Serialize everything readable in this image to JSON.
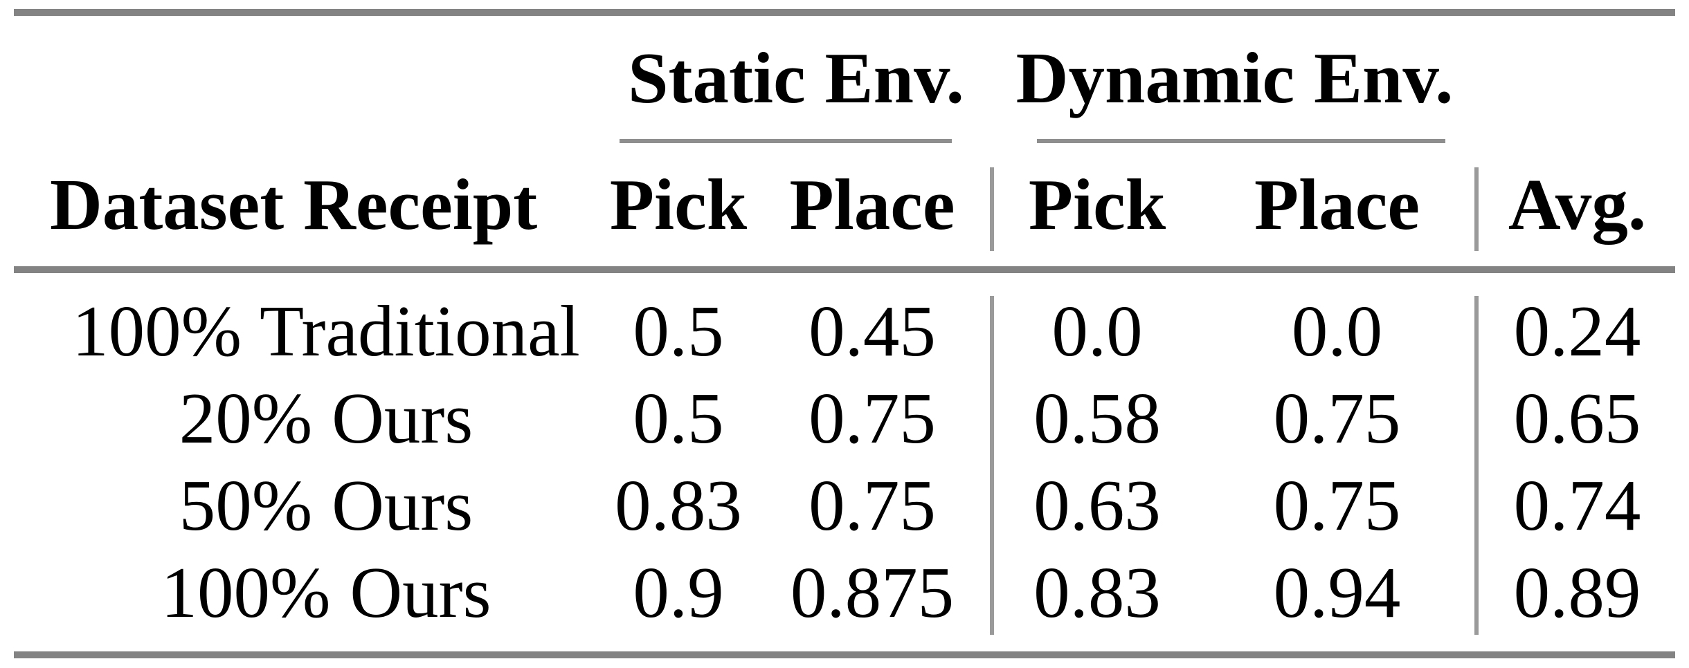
{
  "table": {
    "header": {
      "dataset": "Dataset Receipt",
      "static": {
        "group": "Static Env.",
        "pick": "Pick",
        "place": "Place"
      },
      "dynamic": {
        "group": "Dynamic Env.",
        "pick": "Pick",
        "place": "Place"
      },
      "avg": "Avg."
    },
    "rows": [
      {
        "dataset": "100% Traditional",
        "static_pick": "0.5",
        "static_place": "0.45",
        "dynamic_pick": "0.0",
        "dynamic_place": "0.0",
        "avg": "0.24"
      },
      {
        "dataset": "20% Ours",
        "static_pick": "0.5",
        "static_place": "0.75",
        "dynamic_pick": "0.58",
        "dynamic_place": "0.75",
        "avg": "0.65"
      },
      {
        "dataset": "50% Ours",
        "static_pick": "0.83",
        "static_place": "0.75",
        "dynamic_pick": "0.63",
        "dynamic_place": "0.75",
        "avg": "0.74"
      },
      {
        "dataset": "100% Ours",
        "static_pick": "0.9",
        "static_place": "0.875",
        "dynamic_pick": "0.83",
        "dynamic_place": "0.94",
        "avg": "0.89"
      }
    ],
    "colors": {
      "text": "#000000",
      "thick_rule_gray": "#838383",
      "cmidrule_gray": "#8e8e8e",
      "vline_gray": "#9a9a9a",
      "background": "#ffffff"
    }
  }
}
